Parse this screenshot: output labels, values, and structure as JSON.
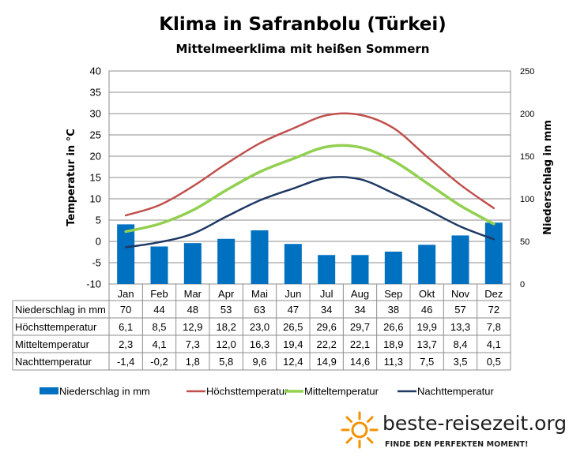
{
  "chart_data": {
    "type": "bar+line",
    "title": "Klima in Safranbolu (Türkei)",
    "subtitle": "Mittelmeerklima mit heißen Sommern",
    "ylabel_left": "Temperatur in °C",
    "ylabel_right": "Niederschlag in mm",
    "ylim_left": [
      -10,
      40
    ],
    "yticks_left": [
      -10,
      -5,
      0,
      5,
      10,
      15,
      20,
      25,
      30,
      35,
      40
    ],
    "ylim_right": [
      0,
      250
    ],
    "yticks_right": [
      0,
      50,
      100,
      150,
      200,
      250
    ],
    "categories": [
      "Jan",
      "Feb",
      "Mar",
      "Apr",
      "Mai",
      "Jun",
      "Jul",
      "Aug",
      "Sep",
      "Okt",
      "Nov",
      "Dez"
    ],
    "grid": true,
    "legend_position": "bottom",
    "series": [
      {
        "name": "Niederschlag in mm",
        "type": "bar",
        "axis": "right",
        "color": "#0070c0",
        "values": [
          70,
          44,
          48,
          53,
          63,
          47,
          34,
          34,
          38,
          46,
          57,
          72
        ],
        "labels": [
          "70",
          "44",
          "48",
          "53",
          "63",
          "47",
          "34",
          "34",
          "38",
          "46",
          "57",
          "72"
        ]
      },
      {
        "name": "Höchsttemperatur",
        "type": "line",
        "axis": "left",
        "color": "#c0504d",
        "values": [
          6.1,
          8.5,
          12.9,
          18.2,
          23.0,
          26.5,
          29.6,
          29.7,
          26.6,
          19.9,
          13.3,
          7.8
        ],
        "labels": [
          "6,1",
          "8,5",
          "12,9",
          "18,2",
          "23,0",
          "26,5",
          "29,6",
          "29,7",
          "26,6",
          "19,9",
          "13,3",
          "7,8"
        ]
      },
      {
        "name": "Mitteltemperatur",
        "type": "line",
        "axis": "left",
        "color": "#92d050",
        "values": [
          2.3,
          4.1,
          7.3,
          12.0,
          16.3,
          19.4,
          22.2,
          22.1,
          18.9,
          13.7,
          8.4,
          4.1
        ],
        "labels": [
          "2,3",
          "4,1",
          "7,3",
          "12,0",
          "16,3",
          "19,4",
          "22,2",
          "22,1",
          "18,9",
          "13,7",
          "8,4",
          "4,1"
        ]
      },
      {
        "name": "Nachttemperatur",
        "type": "line",
        "axis": "left",
        "color": "#1f3864",
        "values": [
          -1.4,
          -0.2,
          1.8,
          5.8,
          9.6,
          12.4,
          14.9,
          14.6,
          11.3,
          7.5,
          3.5,
          0.5
        ],
        "labels": [
          "-1,4",
          "-0,2",
          "1,8",
          "5,8",
          "9,6",
          "12,4",
          "14,9",
          "14,6",
          "11,3",
          "7,5",
          "3,5",
          "0,5"
        ]
      }
    ]
  },
  "branding": {
    "site": "beste-reisezeit.org",
    "tagline": "FINDE DEN PERFEKTEN MOMENT!",
    "icon": "sun-icon",
    "accent": "#f39200"
  }
}
